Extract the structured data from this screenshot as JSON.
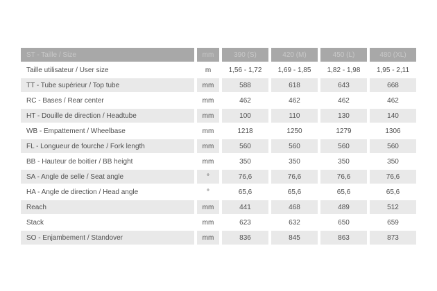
{
  "chart_data": {
    "type": "table",
    "header": {
      "label": "ST - Taille / Size",
      "unit": "mm",
      "sizes": [
        "390 (S)",
        "420 (M)",
        "450 (L)",
        "480 (XL)"
      ]
    },
    "rows": [
      {
        "label": "Taille utilisateur / User size",
        "unit": "m",
        "values": [
          "1,56 - 1,72",
          "1,69 - 1,85",
          "1,82 - 1,98",
          "1,95 - 2,11"
        ],
        "striped": false
      },
      {
        "label": "TT - Tube supérieur / Top tube",
        "unit": "mm",
        "values": [
          "588",
          "618",
          "643",
          "668"
        ],
        "striped": true
      },
      {
        "label": "RC - Bases / Rear center",
        "unit": "mm",
        "values": [
          "462",
          "462",
          "462",
          "462"
        ],
        "striped": false
      },
      {
        "label": "HT - Douille de direction / Headtube",
        "unit": "mm",
        "values": [
          "100",
          "110",
          "130",
          "140"
        ],
        "striped": true
      },
      {
        "label": "WB - Empattement / Wheelbase",
        "unit": "mm",
        "values": [
          "1218",
          "1250",
          "1279",
          "1306"
        ],
        "striped": false
      },
      {
        "label": "FL - Longueur de fourche / Fork length",
        "unit": "mm",
        "values": [
          "560",
          "560",
          "560",
          "560"
        ],
        "striped": true
      },
      {
        "label": "BB - Hauteur de boitier / BB height",
        "unit": "mm",
        "values": [
          "350",
          "350",
          "350",
          "350"
        ],
        "striped": false
      },
      {
        "label": "SA - Angle de selle / Seat angle",
        "unit": "°",
        "values": [
          "76,6",
          "76,6",
          "76,6",
          "76,6"
        ],
        "striped": true
      },
      {
        "label": "HA - Angle de direction / Head angle",
        "unit": "°",
        "values": [
          "65,6",
          "65,6",
          "65,6",
          "65,6"
        ],
        "striped": false
      },
      {
        "label": "Reach",
        "unit": "mm",
        "values": [
          "441",
          "468",
          "489",
          "512"
        ],
        "striped": true
      },
      {
        "label": "Stack",
        "unit": "mm",
        "values": [
          "623",
          "632",
          "650",
          "659"
        ],
        "striped": false
      },
      {
        "label": "SO - Enjambement / Standover",
        "unit": "mm",
        "values": [
          "836",
          "845",
          "863",
          "873"
        ],
        "striped": true
      }
    ]
  },
  "colors": {
    "header_bg": "#a8a8a8",
    "header_text": "#c9c9c9",
    "stripe_bg": "#e9e9e9",
    "body_text": "#4f4f4f",
    "page_bg": "#ffffff"
  }
}
